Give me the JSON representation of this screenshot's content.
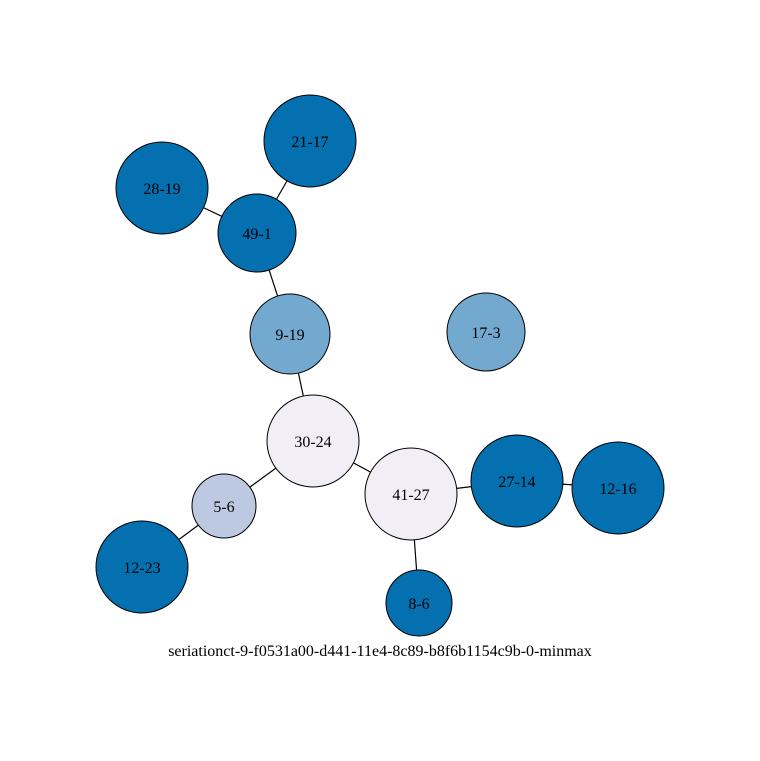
{
  "colors": {
    "background": "#ffffff",
    "edge": "#000000",
    "node_stroke": "#000000",
    "dark_blue": "#0570b0",
    "mid_blue": "#74a9cf",
    "light_blue": "#bdc9e1",
    "near_white": "#f1eef6"
  },
  "caption": "seriationct-9-f0531a00-d441-11e4-8c89-b8f6b1154c9b-0-minmax",
  "nodes": [
    {
      "id": "21-17",
      "label": "21-17",
      "color": "dark_blue"
    },
    {
      "id": "28-19",
      "label": "28-19",
      "color": "dark_blue"
    },
    {
      "id": "49-1",
      "label": "49-1",
      "color": "dark_blue"
    },
    {
      "id": "9-19",
      "label": "9-19",
      "color": "mid_blue"
    },
    {
      "id": "17-3",
      "label": "17-3",
      "color": "mid_blue"
    },
    {
      "id": "30-24",
      "label": "30-24",
      "color": "near_white"
    },
    {
      "id": "41-27",
      "label": "41-27",
      "color": "near_white"
    },
    {
      "id": "27-14",
      "label": "27-14",
      "color": "dark_blue"
    },
    {
      "id": "12-16",
      "label": "12-16",
      "color": "dark_blue"
    },
    {
      "id": "5-6",
      "label": "5-6",
      "color": "light_blue"
    },
    {
      "id": "12-23",
      "label": "12-23",
      "color": "dark_blue"
    },
    {
      "id": "8-6",
      "label": "8-6",
      "color": "dark_blue"
    }
  ],
  "edges": [
    {
      "source": "21-17",
      "target": "49-1"
    },
    {
      "source": "28-19",
      "target": "49-1"
    },
    {
      "source": "49-1",
      "target": "9-19"
    },
    {
      "source": "9-19",
      "target": "30-24"
    },
    {
      "source": "30-24",
      "target": "5-6"
    },
    {
      "source": "5-6",
      "target": "12-23"
    },
    {
      "source": "30-24",
      "target": "41-27"
    },
    {
      "source": "41-27",
      "target": "27-14"
    },
    {
      "source": "27-14",
      "target": "12-16"
    },
    {
      "source": "41-27",
      "target": "8-6"
    }
  ]
}
